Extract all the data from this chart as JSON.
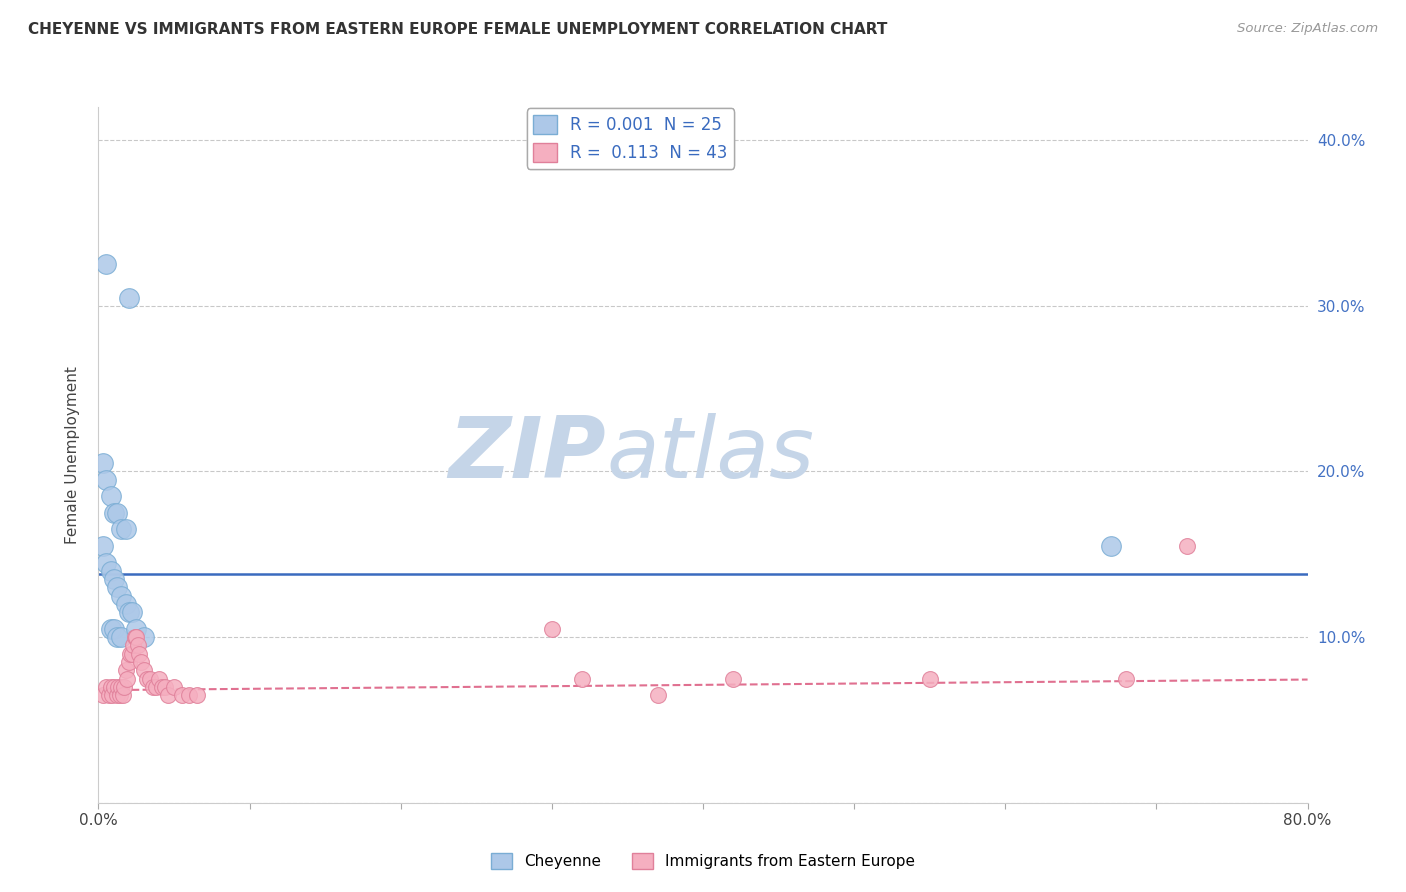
{
  "title": "CHEYENNE VS IMMIGRANTS FROM EASTERN EUROPE FEMALE UNEMPLOYMENT CORRELATION CHART",
  "source": "Source: ZipAtlas.com",
  "ylabel": "Female Unemployment",
  "xlim": [
    0.0,
    0.8
  ],
  "ylim": [
    0.0,
    0.42
  ],
  "x_ticks": [
    0.0,
    0.1,
    0.2,
    0.3,
    0.4,
    0.5,
    0.6,
    0.7,
    0.8
  ],
  "x_tick_labels": [
    "0.0%",
    "",
    "",
    "",
    "",
    "",
    "",
    "",
    "80.0%"
  ],
  "y_ticks": [
    0.0,
    0.1,
    0.2,
    0.3,
    0.4
  ],
  "y_tick_labels_right": [
    "",
    "10.0%",
    "20.0%",
    "30.0%",
    "40.0%"
  ],
  "cheyenne_color": "#adc8e8",
  "cheyenne_edge": "#7aadd4",
  "immigrants_color": "#f5afc0",
  "immigrants_edge": "#e0809a",
  "cheyenne_R": "0.001",
  "cheyenne_N": "25",
  "immigrants_R": "0.113",
  "immigrants_N": "43",
  "cheyenne_line_color": "#3a6bbf",
  "immigrants_line_color": "#e07090",
  "watermark_zip": "ZIP",
  "watermark_atlas": "atlas",
  "watermark_zip_color": "#c8d8ec",
  "watermark_atlas_color": "#c8d8ec",
  "background_color": "#ffffff",
  "cheyenne_scatter_x": [
    0.005,
    0.02,
    0.003,
    0.005,
    0.008,
    0.01,
    0.012,
    0.015,
    0.018,
    0.003,
    0.005,
    0.008,
    0.01,
    0.012,
    0.015,
    0.018,
    0.02,
    0.022,
    0.008,
    0.01,
    0.012,
    0.015,
    0.025,
    0.03,
    0.67
  ],
  "cheyenne_scatter_y": [
    0.325,
    0.305,
    0.205,
    0.195,
    0.185,
    0.175,
    0.175,
    0.165,
    0.165,
    0.155,
    0.145,
    0.14,
    0.135,
    0.13,
    0.125,
    0.12,
    0.115,
    0.115,
    0.105,
    0.105,
    0.1,
    0.1,
    0.105,
    0.1,
    0.155
  ],
  "immigrants_scatter_x": [
    0.003,
    0.005,
    0.007,
    0.008,
    0.009,
    0.01,
    0.012,
    0.013,
    0.014,
    0.015,
    0.016,
    0.017,
    0.018,
    0.019,
    0.02,
    0.021,
    0.022,
    0.023,
    0.024,
    0.025,
    0.026,
    0.027,
    0.028,
    0.03,
    0.032,
    0.034,
    0.036,
    0.038,
    0.04,
    0.042,
    0.044,
    0.046,
    0.05,
    0.055,
    0.06,
    0.065,
    0.3,
    0.32,
    0.37,
    0.42,
    0.55,
    0.68,
    0.72
  ],
  "immigrants_scatter_y": [
    0.065,
    0.07,
    0.065,
    0.07,
    0.065,
    0.07,
    0.065,
    0.07,
    0.065,
    0.07,
    0.065,
    0.07,
    0.08,
    0.075,
    0.085,
    0.09,
    0.09,
    0.095,
    0.1,
    0.1,
    0.095,
    0.09,
    0.085,
    0.08,
    0.075,
    0.075,
    0.07,
    0.07,
    0.075,
    0.07,
    0.07,
    0.065,
    0.07,
    0.065,
    0.065,
    0.065,
    0.105,
    0.075,
    0.065,
    0.075,
    0.075,
    0.075,
    0.155
  ],
  "cheyenne_line_y_intercept": 0.138,
  "cheyenne_line_slope": 0.0,
  "immigrants_line_y_intercept": 0.068,
  "immigrants_line_slope": 0.008
}
